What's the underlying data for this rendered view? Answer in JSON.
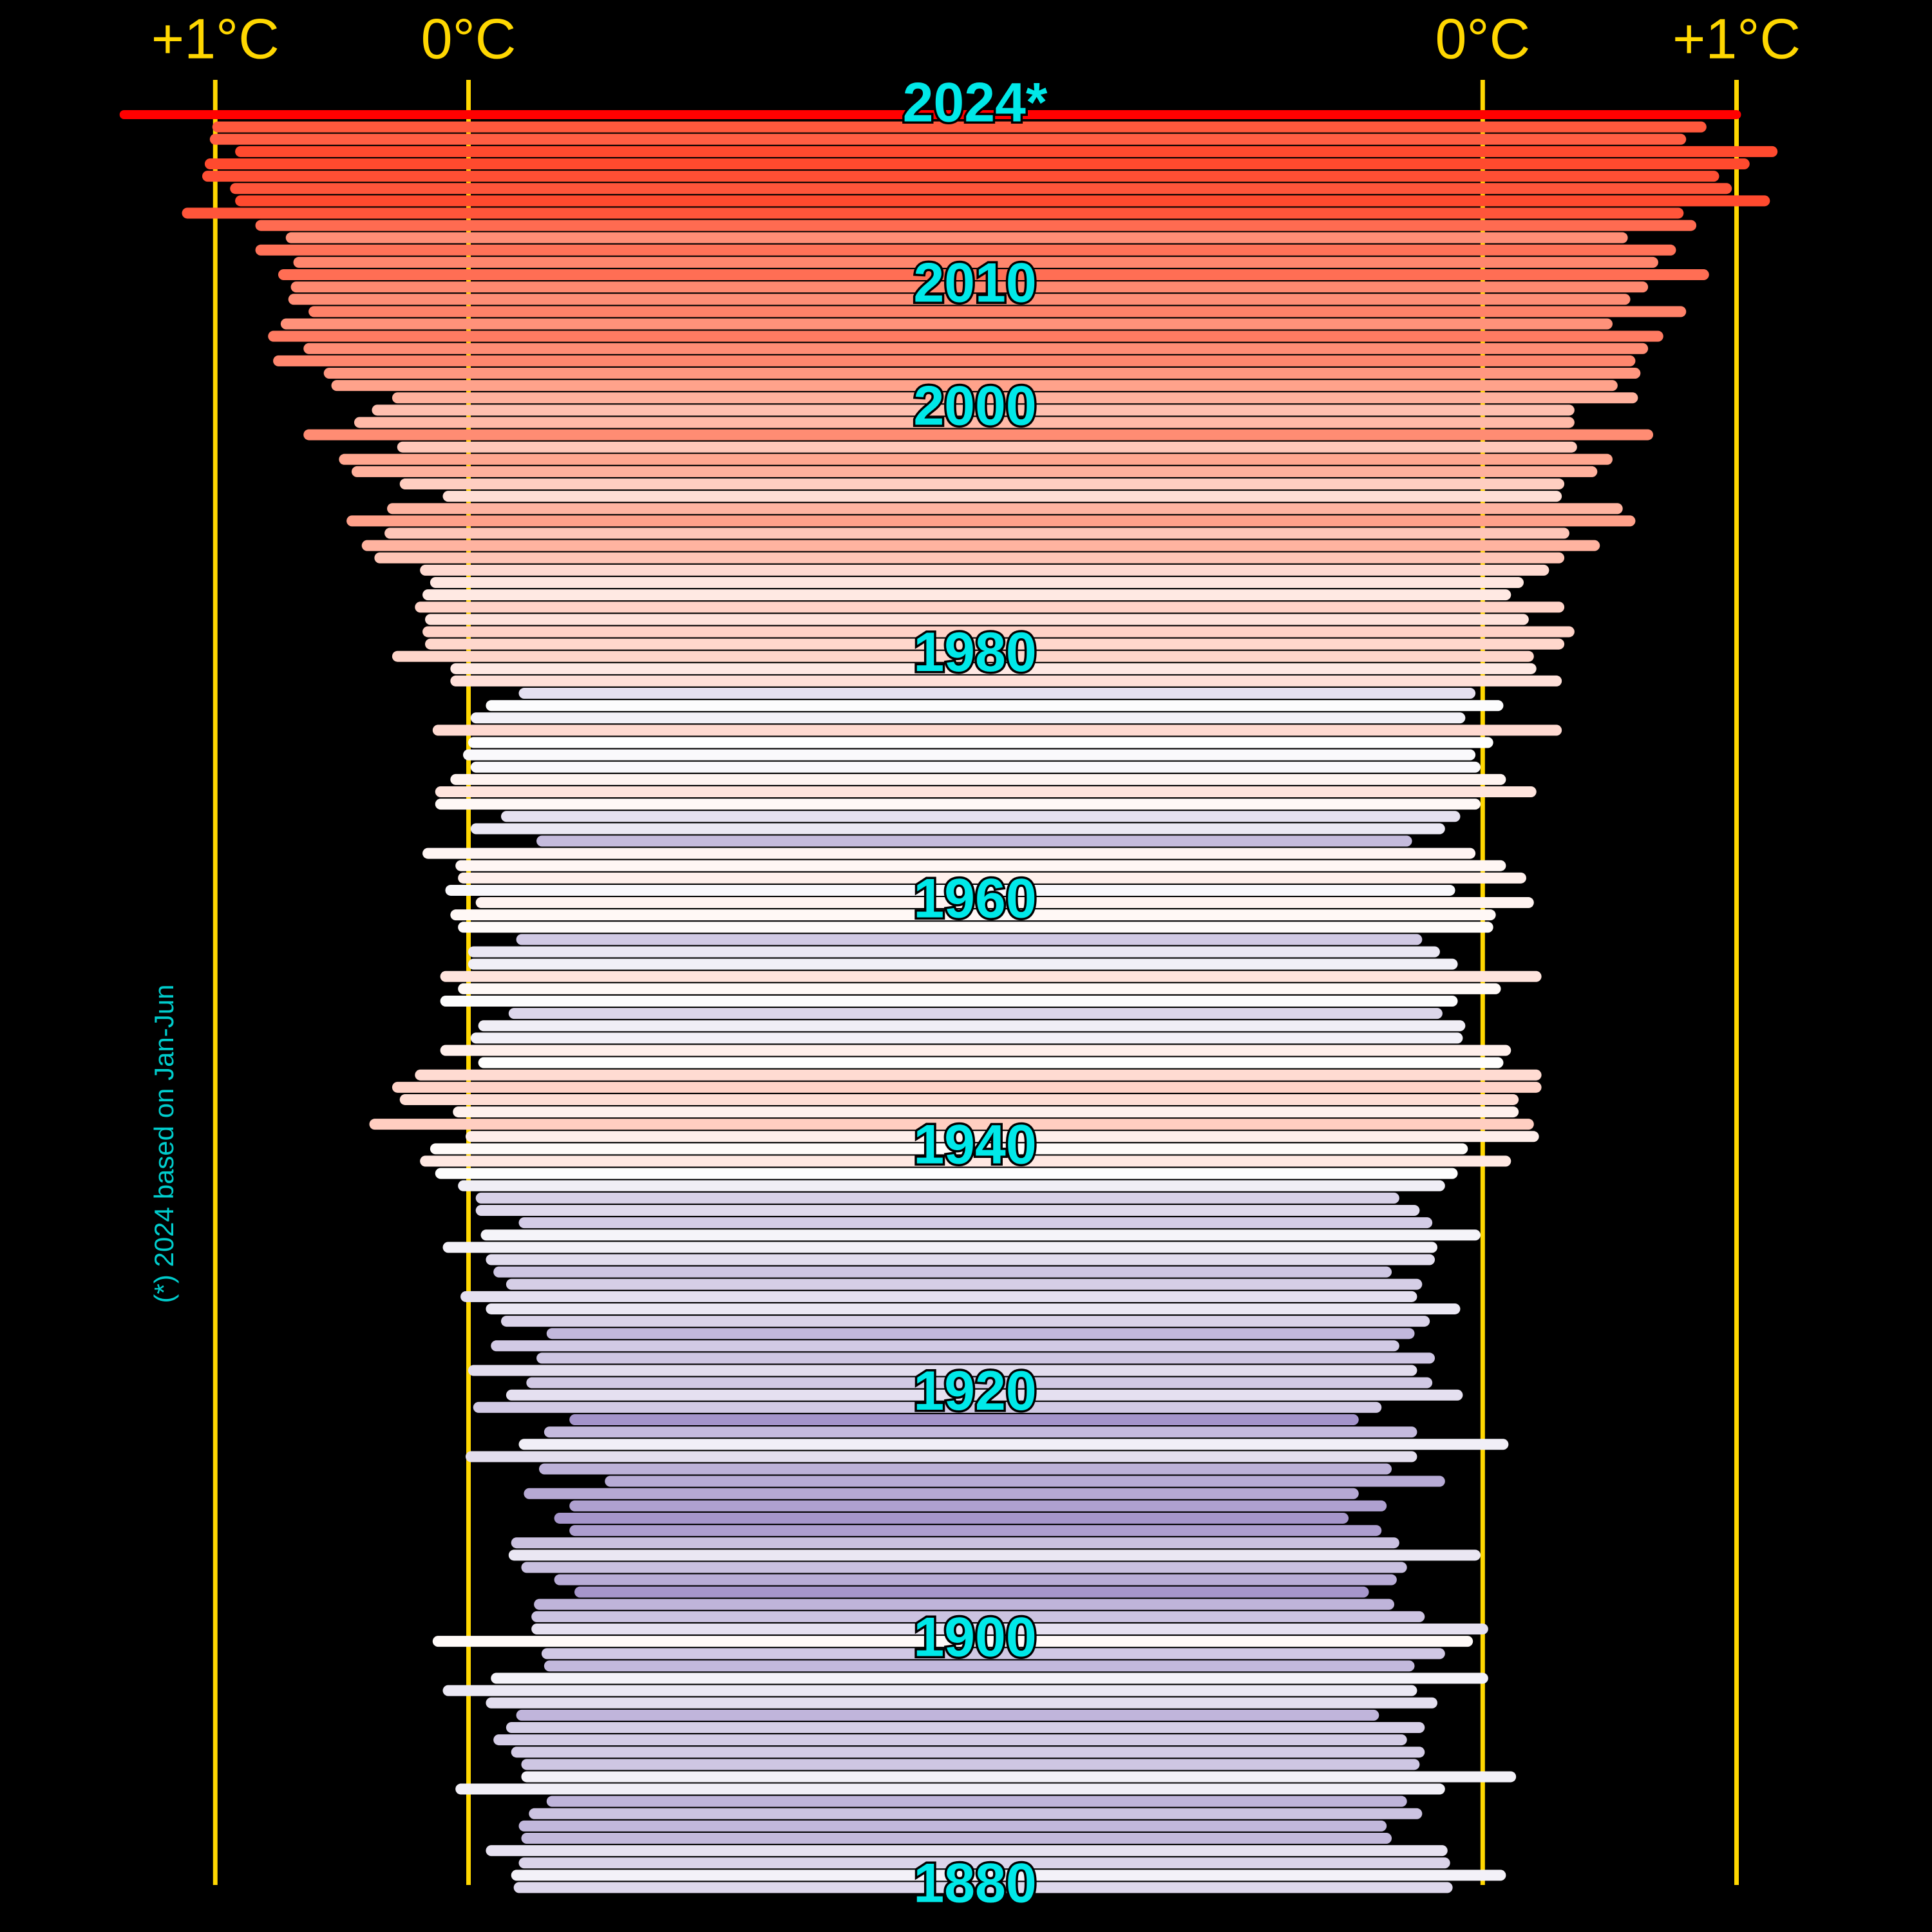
{
  "chart_data": {
    "type": "funnel-bars",
    "footnote": "(*) 2024 based on Jan-Jun",
    "x": [
      1880,
      1881,
      1882,
      1883,
      1884,
      1885,
      1886,
      1887,
      1888,
      1889,
      1890,
      1891,
      1892,
      1893,
      1894,
      1895,
      1896,
      1897,
      1898,
      1899,
      1900,
      1901,
      1902,
      1903,
      1904,
      1905,
      1906,
      1907,
      1908,
      1909,
      1910,
      1911,
      1912,
      1913,
      1914,
      1915,
      1916,
      1917,
      1918,
      1919,
      1920,
      1921,
      1922,
      1923,
      1924,
      1925,
      1926,
      1927,
      1928,
      1929,
      1930,
      1931,
      1932,
      1933,
      1934,
      1935,
      1936,
      1937,
      1938,
      1939,
      1940,
      1941,
      1942,
      1943,
      1944,
      1945,
      1946,
      1947,
      1948,
      1949,
      1950,
      1951,
      1952,
      1953,
      1954,
      1955,
      1956,
      1957,
      1958,
      1959,
      1960,
      1961,
      1962,
      1963,
      1964,
      1965,
      1966,
      1967,
      1968,
      1969,
      1970,
      1971,
      1972,
      1973,
      1974,
      1975,
      1976,
      1977,
      1978,
      1979,
      1980,
      1981,
      1982,
      1983,
      1984,
      1985,
      1986,
      1987,
      1988,
      1989,
      1990,
      1991,
      1992,
      1993,
      1994,
      1995,
      1996,
      1997,
      1998,
      1999,
      2000,
      2001,
      2002,
      2003,
      2004,
      2005,
      2006,
      2007,
      2008,
      2009,
      2010,
      2011,
      2012,
      2013,
      2014,
      2015,
      2016,
      2017,
      2018,
      2019,
      2020,
      2021,
      2022,
      2023,
      2024
    ],
    "series": [
      {
        "axis": "x",
        "values": [
          -0.2,
          -0.19,
          -0.22,
          -0.09,
          -0.23,
          -0.22,
          -0.26,
          -0.33,
          0.03,
          -0.23,
          -0.23,
          -0.19,
          -0.12,
          -0.17,
          -0.21,
          -0.09,
          0.08,
          -0.11,
          -0.32,
          -0.31,
          0.12,
          -0.27,
          -0.27,
          -0.28,
          -0.44,
          -0.36,
          -0.23,
          -0.18,
          -0.19,
          -0.42,
          -0.36,
          -0.42,
          -0.24,
          -0.56,
          -0.3,
          -0.01,
          -0.22,
          -0.32,
          -0.42,
          -0.04,
          -0.17,
          -0.25,
          -0.02,
          -0.29,
          -0.11,
          -0.33,
          -0.15,
          -0.09,
          0.01,
          -0.17,
          -0.12,
          -0.09,
          0.08,
          -0.07,
          -0.22,
          -0.05,
          -0.05,
          0.02,
          0.11,
          0.17,
          0.13,
          -0.01,
          0.37,
          0.04,
          0.25,
          0.28,
          0.19,
          -0.06,
          0.09,
          -0.03,
          -0.06,
          -0.18,
          0.09,
          0.02,
          0.09,
          -0.02,
          -0.02,
          -0.21,
          0.02,
          0.05,
          -0.05,
          0.07,
          0.02,
          0.03,
          0.16,
          -0.29,
          -0.03,
          -0.15,
          0.11,
          0.11,
          0.05,
          -0.03,
          0.0,
          -0.02,
          0.12,
          -0.03,
          -0.09,
          -0.22,
          0.05,
          0.05,
          0.28,
          0.15,
          0.16,
          0.15,
          0.19,
          0.16,
          0.13,
          0.17,
          0.35,
          0.4,
          0.31,
          0.46,
          0.3,
          0.08,
          0.25,
          0.44,
          0.49,
          0.26,
          0.63,
          0.43,
          0.36,
          0.28,
          0.52,
          0.55,
          0.75,
          0.63,
          0.77,
          0.72,
          0.61,
          0.69,
          0.68,
          0.73,
          0.67,
          0.82,
          0.7,
          0.82,
          1.11,
          0.9,
          0.92,
          1.03,
          1.02,
          0.9,
          1.0,
          0.99,
          1.36
        ]
      },
      {
        "axis": "x2",
        "values": [
          -0.14,
          0.07,
          -0.15,
          -0.16,
          -0.38,
          -0.4,
          -0.26,
          -0.32,
          -0.17,
          0.11,
          -0.27,
          -0.25,
          -0.32,
          -0.25,
          -0.43,
          -0.2,
          -0.28,
          0.0,
          -0.29,
          -0.17,
          -0.06,
          0.0,
          -0.25,
          -0.37,
          -0.47,
          -0.36,
          -0.32,
          -0.03,
          -0.35,
          -0.42,
          -0.55,
          -0.4,
          -0.51,
          -0.17,
          -0.38,
          -0.28,
          0.08,
          -0.28,
          -0.51,
          -0.42,
          -0.1,
          -0.22,
          -0.28,
          -0.21,
          -0.35,
          -0.29,
          -0.23,
          -0.11,
          -0.28,
          -0.26,
          -0.38,
          -0.21,
          -0.2,
          -0.03,
          -0.22,
          -0.27,
          -0.35,
          -0.17,
          -0.12,
          0.09,
          -0.08,
          0.2,
          0.18,
          0.12,
          0.12,
          0.21,
          0.21,
          0.06,
          0.09,
          -0.1,
          -0.09,
          -0.18,
          -0.12,
          0.05,
          0.21,
          -0.12,
          -0.19,
          -0.26,
          0.02,
          0.03,
          0.18,
          -0.13,
          0.15,
          0.07,
          -0.05,
          -0.3,
          -0.17,
          -0.11,
          -0.03,
          0.19,
          0.07,
          -0.03,
          -0.05,
          0.02,
          0.29,
          -0.09,
          0.06,
          -0.05,
          0.29,
          0.19,
          0.18,
          0.3,
          0.34,
          0.16,
          0.3,
          0.09,
          0.14,
          0.24,
          0.3,
          0.44,
          0.32,
          0.58,
          0.53,
          0.29,
          0.3,
          0.43,
          0.49,
          0.35,
          0.65,
          0.34,
          0.34,
          0.59,
          0.51,
          0.6,
          0.58,
          0.63,
          0.69,
          0.49,
          0.78,
          0.56,
          0.63,
          0.87,
          0.67,
          0.74,
          0.55,
          0.82,
          0.77,
          1.11,
          0.96,
          0.91,
          1.03,
          1.14,
          0.78,
          0.86,
          1.0
        ]
      }
    ],
    "xlim": [
      1.85,
      -2
    ],
    "x2lim": [
      -2,
      1.77
    ],
    "ylim": [
      1880,
      2024
    ],
    "xticks": [
      {
        "value": 1,
        "label": "+1°C"
      },
      {
        "value": 0,
        "label": "0°C"
      }
    ],
    "x2ticks": [
      {
        "value": 0,
        "label": "0°C"
      },
      {
        "value": 1,
        "label": "+1°C"
      }
    ],
    "yticks": [
      {
        "value": 2024,
        "label": "2024*"
      },
      2010,
      2000,
      1980,
      1960,
      1940,
      1920,
      1900,
      1880
    ],
    "colormap": [
      {
        "value": -0.5,
        "color": "#9d8cc6"
      },
      {
        "value": 0,
        "color": "#ffffff"
      },
      {
        "value": 0.5,
        "color": "#ffa58e"
      },
      {
        "value": 1,
        "color": "#ff4a2e"
      }
    ],
    "highlight_color": "#ff0000",
    "tick_color": "#ffd700",
    "label_color": "#00e8e8"
  }
}
